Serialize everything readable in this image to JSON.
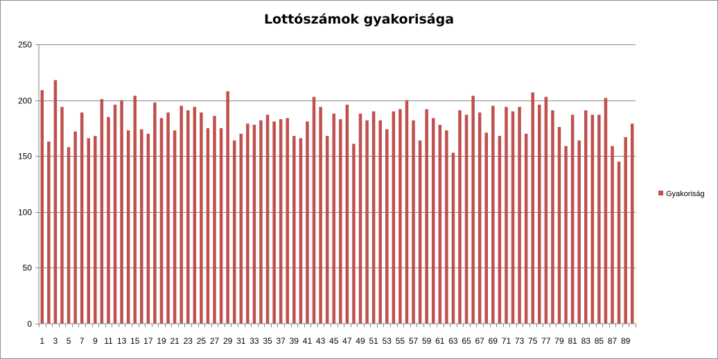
{
  "chart_data": {
    "type": "bar",
    "title": "Lottószámok gyakorisága",
    "xlabel": "",
    "ylabel": "",
    "ylim": [
      0,
      250
    ],
    "y_ticks": [
      "0",
      "50",
      "100",
      "150",
      "200",
      "250"
    ],
    "x_tick_labels": [
      "1",
      "3",
      "5",
      "7",
      "9",
      "11",
      "13",
      "15",
      "17",
      "19",
      "21",
      "23",
      "25",
      "27",
      "29",
      "31",
      "33",
      "35",
      "37",
      "39",
      "41",
      "43",
      "45",
      "47",
      "49",
      "51",
      "53",
      "55",
      "57",
      "59",
      "61",
      "63",
      "65",
      "67",
      "69",
      "71",
      "73",
      "75",
      "77",
      "79",
      "81",
      "83",
      "85",
      "87",
      "89"
    ],
    "grid": "horizontal",
    "legend_position": "right",
    "bar_color": "#C0504D",
    "categories": [
      "1",
      "2",
      "3",
      "4",
      "5",
      "6",
      "7",
      "8",
      "9",
      "10",
      "11",
      "12",
      "13",
      "14",
      "15",
      "16",
      "17",
      "18",
      "19",
      "20",
      "21",
      "22",
      "23",
      "24",
      "25",
      "26",
      "27",
      "28",
      "29",
      "30",
      "31",
      "32",
      "33",
      "34",
      "35",
      "36",
      "37",
      "38",
      "39",
      "40",
      "41",
      "42",
      "43",
      "44",
      "45",
      "46",
      "47",
      "48",
      "49",
      "50",
      "51",
      "52",
      "53",
      "54",
      "55",
      "56",
      "57",
      "58",
      "59",
      "60",
      "61",
      "62",
      "63",
      "64",
      "65",
      "66",
      "67",
      "68",
      "69",
      "70",
      "71",
      "72",
      "73",
      "74",
      "75",
      "76",
      "77",
      "78",
      "79",
      "80",
      "81",
      "82",
      "83",
      "84",
      "85",
      "86",
      "87",
      "88",
      "89",
      "90"
    ],
    "series": [
      {
        "name": "Gyakoriság",
        "values": [
          209,
          163,
          218,
          194,
          158,
          172,
          189,
          166,
          168,
          201,
          185,
          196,
          200,
          173,
          204,
          174,
          170,
          198,
          184,
          189,
          173,
          195,
          191,
          194,
          189,
          175,
          186,
          175,
          208,
          164,
          170,
          179,
          178,
          182,
          187,
          181,
          183,
          184,
          168,
          166,
          181,
          203,
          194,
          168,
          188,
          183,
          196,
          161,
          188,
          182,
          190,
          182,
          174,
          190,
          192,
          200,
          182,
          164,
          192,
          184,
          178,
          173,
          153,
          191,
          187,
          204,
          189,
          171,
          195,
          168,
          194,
          190,
          194,
          170,
          207,
          196,
          203,
          191,
          176,
          159,
          187,
          164,
          191,
          187,
          187,
          202,
          159,
          145,
          167,
          179
        ]
      }
    ]
  }
}
